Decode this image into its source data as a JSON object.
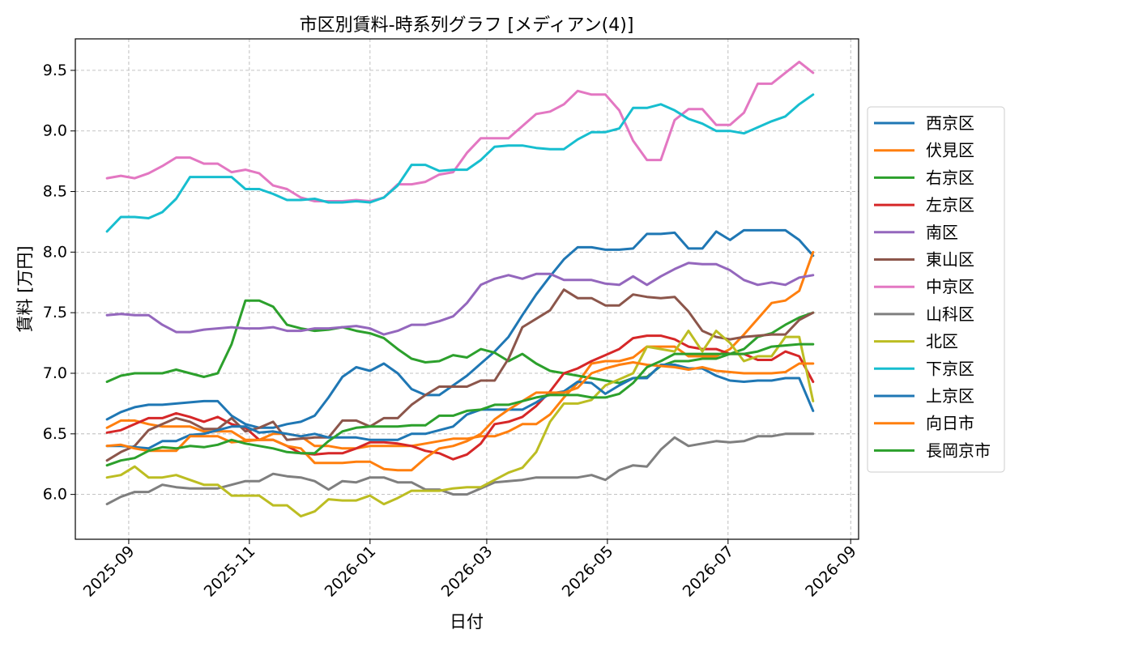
{
  "chart_data": {
    "type": "line",
    "title": "市区別賃料-時系列グラフ [メディアン(4)]",
    "xlabel": "日付",
    "ylabel": "賃料 [万円]",
    "xlim": [
      "2025-08-05",
      "2026-09-05"
    ],
    "ylim": [
      5.63,
      9.76
    ],
    "grid": true,
    "legend_position": "right",
    "x_ticks": [
      "2025-09",
      "2025-11",
      "2026-01",
      "2026-03",
      "2026-05",
      "2026-07",
      "2026-09"
    ],
    "y_ticks": [
      "6.0",
      "6.5",
      "7.0",
      "7.5",
      "8.0",
      "8.5",
      "9.0",
      "9.5"
    ],
    "x": [
      "2025-08-21",
      "2025-08-28",
      "2025-09-04",
      "2025-09-11",
      "2025-09-18",
      "2025-09-25",
      "2025-10-02",
      "2025-10-09",
      "2025-10-16",
      "2025-10-23",
      "2025-10-30",
      "2025-11-06",
      "2025-11-13",
      "2025-11-20",
      "2025-11-27",
      "2025-12-04",
      "2025-12-11",
      "2025-12-18",
      "2025-12-25",
      "2026-01-01",
      "2026-01-08",
      "2026-01-15",
      "2026-01-22",
      "2026-01-29",
      "2026-02-05",
      "2026-02-12",
      "2026-02-19",
      "2026-02-26",
      "2026-03-05",
      "2026-03-12",
      "2026-03-19",
      "2026-03-26",
      "2026-04-02",
      "2026-04-09",
      "2026-04-16",
      "2026-04-23",
      "2026-04-30",
      "2026-05-07",
      "2026-05-14",
      "2026-05-21",
      "2026-05-28",
      "2026-06-04",
      "2026-06-11",
      "2026-06-18",
      "2026-06-25",
      "2026-07-02",
      "2026-07-09",
      "2026-07-16",
      "2026-07-23",
      "2026-07-30",
      "2026-08-06",
      "2026-08-13"
    ],
    "series": [
      {
        "name": "西京区",
        "color": "#1f77b4",
        "values": [
          6.62,
          6.68,
          6.72,
          6.74,
          6.74,
          6.75,
          6.76,
          6.77,
          6.77,
          6.65,
          6.58,
          6.55,
          6.55,
          6.58,
          6.6,
          6.65,
          6.8,
          6.97,
          7.05,
          7.02,
          7.08,
          7.0,
          6.87,
          6.82,
          6.82,
          6.9,
          6.98,
          7.08,
          7.18,
          7.3,
          7.48,
          7.65,
          7.8,
          7.94,
          8.04,
          8.04,
          8.02,
          8.02,
          8.03,
          8.15,
          8.15,
          8.16,
          8.03,
          8.03,
          8.17,
          8.1,
          8.18,
          8.18,
          8.18,
          8.18,
          8.1,
          7.97
        ]
      },
      {
        "name": "伏見区",
        "color": "#ff7f0e",
        "values": [
          6.55,
          6.61,
          6.61,
          6.58,
          6.56,
          6.56,
          6.56,
          6.52,
          6.52,
          6.52,
          6.45,
          6.45,
          6.5,
          6.5,
          6.48,
          6.4,
          6.4,
          6.38,
          6.38,
          6.4,
          6.4,
          6.4,
          6.4,
          6.42,
          6.44,
          6.46,
          6.46,
          6.48,
          6.48,
          6.52,
          6.58,
          6.58,
          6.66,
          6.8,
          6.92,
          7.08,
          7.1,
          7.1,
          7.13,
          7.22,
          7.22,
          7.22,
          7.14,
          7.14,
          7.14,
          7.2,
          7.32,
          7.45,
          7.58,
          7.6,
          7.68,
          8.0
        ]
      },
      {
        "name": "右京区",
        "color": "#2ca02c",
        "values": [
          6.93,
          6.98,
          7.0,
          7.0,
          7.0,
          7.03,
          7.0,
          6.97,
          7.0,
          7.24,
          7.6,
          7.6,
          7.55,
          7.4,
          7.37,
          7.35,
          7.36,
          7.38,
          7.35,
          7.33,
          7.29,
          7.2,
          7.12,
          7.09,
          7.1,
          7.15,
          7.13,
          7.2,
          7.17,
          7.1,
          7.16,
          7.08,
          7.02,
          7.0,
          6.98,
          6.96,
          6.94,
          6.92,
          6.96,
          6.97,
          7.06,
          7.1,
          7.1,
          7.12,
          7.12,
          7.16,
          7.2,
          7.3,
          7.33,
          7.4,
          7.46,
          7.5
        ]
      },
      {
        "name": "左京区",
        "color": "#d62728",
        "values": [
          6.51,
          6.53,
          6.58,
          6.63,
          6.63,
          6.67,
          6.64,
          6.6,
          6.64,
          6.58,
          6.55,
          6.45,
          6.45,
          6.4,
          6.34,
          6.33,
          6.34,
          6.34,
          6.38,
          6.43,
          6.43,
          6.42,
          6.4,
          6.36,
          6.34,
          6.29,
          6.33,
          6.42,
          6.58,
          6.6,
          6.64,
          6.73,
          6.85,
          7.0,
          7.04,
          7.1,
          7.15,
          7.2,
          7.29,
          7.31,
          7.31,
          7.28,
          7.22,
          7.2,
          7.2,
          7.16,
          7.16,
          7.11,
          7.11,
          7.18,
          7.14,
          6.93
        ]
      },
      {
        "name": "南区",
        "color": "#9467bd",
        "values": [
          7.48,
          7.49,
          7.48,
          7.48,
          7.4,
          7.34,
          7.34,
          7.36,
          7.37,
          7.38,
          7.37,
          7.37,
          7.38,
          7.35,
          7.35,
          7.37,
          7.37,
          7.38,
          7.39,
          7.37,
          7.32,
          7.35,
          7.4,
          7.4,
          7.43,
          7.47,
          7.58,
          7.73,
          7.78,
          7.81,
          7.78,
          7.82,
          7.82,
          7.77,
          7.77,
          7.77,
          7.74,
          7.73,
          7.8,
          7.73,
          7.8,
          7.86,
          7.91,
          7.9,
          7.9,
          7.85,
          7.77,
          7.73,
          7.75,
          7.73,
          7.79,
          7.81
        ]
      },
      {
        "name": "東山区",
        "color": "#8c564b",
        "values": [
          6.28,
          6.35,
          6.4,
          6.53,
          6.58,
          6.63,
          6.6,
          6.54,
          6.54,
          6.63,
          6.52,
          6.55,
          6.6,
          6.45,
          6.46,
          6.47,
          6.47,
          6.61,
          6.61,
          6.56,
          6.63,
          6.63,
          6.74,
          6.82,
          6.89,
          6.89,
          6.89,
          6.94,
          6.94,
          7.12,
          7.38,
          7.45,
          7.52,
          7.69,
          7.62,
          7.62,
          7.56,
          7.56,
          7.65,
          7.63,
          7.62,
          7.63,
          7.51,
          7.35,
          7.3,
          7.28,
          7.3,
          7.31,
          7.32,
          7.32,
          7.44,
          7.5
        ]
      },
      {
        "name": "中京区",
        "color": "#e377c2",
        "values": [
          8.61,
          8.63,
          8.61,
          8.65,
          8.71,
          8.78,
          8.78,
          8.73,
          8.73,
          8.66,
          8.68,
          8.65,
          8.55,
          8.52,
          8.45,
          8.42,
          8.42,
          8.42,
          8.43,
          8.42,
          8.45,
          8.56,
          8.56,
          8.58,
          8.64,
          8.66,
          8.82,
          8.94,
          8.94,
          8.94,
          9.04,
          9.14,
          9.16,
          9.22,
          9.33,
          9.3,
          9.3,
          9.17,
          8.92,
          8.76,
          8.76,
          9.09,
          9.18,
          9.18,
          9.05,
          9.05,
          9.15,
          9.39,
          9.39,
          9.48,
          9.57,
          9.48
        ]
      },
      {
        "name": "山科区",
        "color": "#7f7f7f",
        "values": [
          5.92,
          5.98,
          6.02,
          6.02,
          6.08,
          6.06,
          6.05,
          6.05,
          6.05,
          6.08,
          6.11,
          6.11,
          6.17,
          6.15,
          6.14,
          6.11,
          6.04,
          6.11,
          6.1,
          6.14,
          6.14,
          6.1,
          6.1,
          6.04,
          6.04,
          6.0,
          6.0,
          6.05,
          6.1,
          6.11,
          6.12,
          6.14,
          6.14,
          6.14,
          6.14,
          6.16,
          6.12,
          6.2,
          6.24,
          6.23,
          6.37,
          6.47,
          6.4,
          6.42,
          6.44,
          6.43,
          6.44,
          6.48,
          6.48,
          6.5,
          6.5,
          6.5
        ]
      },
      {
        "name": "北区",
        "color": "#bcbd22",
        "values": [
          6.14,
          6.16,
          6.23,
          6.14,
          6.14,
          6.16,
          6.12,
          6.08,
          6.08,
          5.99,
          5.99,
          5.99,
          5.91,
          5.91,
          5.82,
          5.86,
          5.96,
          5.95,
          5.95,
          5.99,
          5.92,
          5.97,
          6.03,
          6.03,
          6.03,
          6.05,
          6.06,
          6.06,
          6.12,
          6.18,
          6.22,
          6.35,
          6.6,
          6.75,
          6.75,
          6.78,
          6.9,
          6.95,
          7.0,
          7.22,
          7.2,
          7.18,
          7.35,
          7.18,
          7.35,
          7.25,
          7.1,
          7.14,
          7.14,
          7.3,
          7.3,
          6.77
        ]
      },
      {
        "name": "下京区",
        "color": "#17becf",
        "values": [
          8.17,
          8.29,
          8.29,
          8.28,
          8.33,
          8.44,
          8.62,
          8.62,
          8.62,
          8.62,
          8.52,
          8.52,
          8.48,
          8.43,
          8.43,
          8.44,
          8.41,
          8.41,
          8.42,
          8.41,
          8.45,
          8.55,
          8.72,
          8.72,
          8.67,
          8.68,
          8.68,
          8.76,
          8.87,
          8.88,
          8.88,
          8.86,
          8.85,
          8.85,
          8.93,
          8.99,
          8.99,
          9.02,
          9.19,
          9.19,
          9.22,
          9.17,
          9.1,
          9.06,
          9.0,
          9.0,
          8.98,
          9.03,
          9.08,
          9.12,
          9.22,
          9.3
        ]
      },
      {
        "name": "上京区",
        "color": "#1f77b4",
        "values": [
          6.4,
          6.4,
          6.39,
          6.38,
          6.44,
          6.44,
          6.49,
          6.5,
          6.53,
          6.56,
          6.56,
          6.51,
          6.52,
          6.5,
          6.48,
          6.5,
          6.47,
          6.47,
          6.47,
          6.45,
          6.45,
          6.45,
          6.5,
          6.5,
          6.53,
          6.56,
          6.66,
          6.7,
          6.7,
          6.7,
          6.7,
          6.76,
          6.83,
          6.85,
          6.93,
          6.92,
          6.83,
          6.9,
          6.96,
          6.96,
          7.07,
          7.07,
          7.04,
          7.04,
          6.98,
          6.94,
          6.93,
          6.94,
          6.94,
          6.96,
          6.96,
          6.69
        ]
      },
      {
        "name": "向日市",
        "color": "#ff7f0e",
        "values": [
          6.4,
          6.41,
          6.38,
          6.36,
          6.36,
          6.36,
          6.48,
          6.48,
          6.48,
          6.43,
          6.44,
          6.45,
          6.45,
          6.4,
          6.38,
          6.26,
          6.26,
          6.26,
          6.27,
          6.27,
          6.21,
          6.2,
          6.2,
          6.3,
          6.38,
          6.4,
          6.44,
          6.5,
          6.62,
          6.7,
          6.77,
          6.84,
          6.84,
          6.84,
          6.88,
          7.0,
          7.04,
          7.07,
          7.09,
          7.07,
          7.06,
          7.05,
          7.03,
          7.05,
          7.02,
          7.01,
          7.0,
          7.0,
          7.0,
          7.01,
          7.08,
          7.08
        ]
      },
      {
        "name": "長岡京市",
        "color": "#2ca02c",
        "values": [
          6.24,
          6.28,
          6.3,
          6.36,
          6.39,
          6.38,
          6.4,
          6.39,
          6.41,
          6.45,
          6.42,
          6.4,
          6.38,
          6.35,
          6.34,
          6.34,
          6.44,
          6.52,
          6.55,
          6.56,
          6.56,
          6.56,
          6.57,
          6.57,
          6.65,
          6.65,
          6.69,
          6.7,
          6.74,
          6.74,
          6.77,
          6.8,
          6.82,
          6.82,
          6.82,
          6.8,
          6.8,
          6.83,
          6.92,
          7.05,
          7.1,
          7.16,
          7.16,
          7.16,
          7.16,
          7.16,
          7.16,
          7.18,
          7.22,
          7.23,
          7.24,
          7.24
        ]
      }
    ]
  }
}
